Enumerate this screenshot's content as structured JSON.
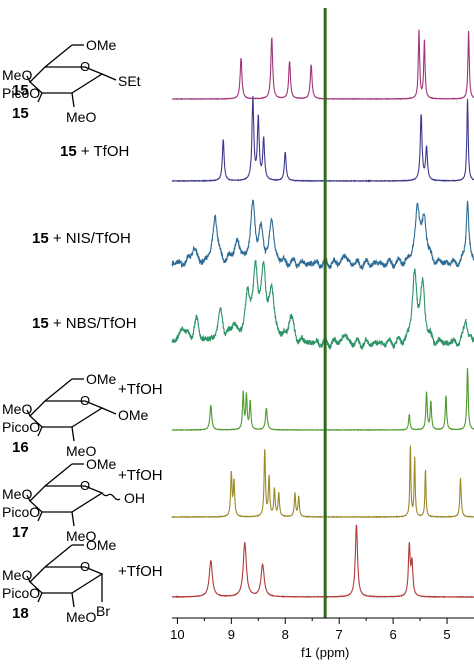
{
  "chart_data": {
    "type": "line",
    "title": "",
    "xlabel": "f1 (ppm)",
    "ylabel": "",
    "xlim": [
      10.1,
      4.5
    ],
    "x_reversed": true,
    "grid": false,
    "x_ticks": [
      10,
      9,
      8,
      7,
      6,
      5
    ],
    "reference_line_ppm": 7.26,
    "structure_labels": {
      "s15_ring": [
        "OMe",
        "MeO",
        "PicoO",
        "SEt",
        "MeO"
      ],
      "s16_ring": [
        "OMe",
        "MeO",
        "PicoO",
        "OMe",
        "MeO"
      ],
      "s17_ring": [
        "OMe",
        "MeO",
        "PicoO",
        "OH",
        "MeO"
      ],
      "s18_ring": [
        "OMe",
        "MeO",
        "PicoO",
        "Br",
        "MeO"
      ]
    },
    "series": [
      {
        "label_number": "15",
        "label_suffix": "",
        "color": "#a0357a",
        "style": "clean",
        "peaks": [
          [
            8.82,
            0.6,
            0.02
          ],
          [
            8.25,
            0.9,
            0.02
          ],
          [
            7.92,
            0.55,
            0.02
          ],
          [
            7.52,
            0.5,
            0.02
          ],
          [
            5.52,
            1.0,
            0.015
          ],
          [
            5.42,
            0.85,
            0.015
          ],
          [
            4.6,
            1.0,
            0.015
          ]
        ]
      },
      {
        "label_number": "15",
        "label_suffix": " + TfOH",
        "color": "#3c3a8e",
        "style": "clean",
        "peaks": [
          [
            9.15,
            0.5,
            0.02
          ],
          [
            8.6,
            1.0,
            0.02
          ],
          [
            8.5,
            0.75,
            0.02
          ],
          [
            8.4,
            0.5,
            0.02
          ],
          [
            8.0,
            0.35,
            0.02
          ],
          [
            5.48,
            0.8,
            0.02
          ],
          [
            5.38,
            0.4,
            0.02
          ],
          [
            4.62,
            1.0,
            0.015
          ]
        ]
      },
      {
        "label_number": "15",
        "label_suffix": " + NIS/TfOH",
        "color": "#2e6c96",
        "style": "broad",
        "peaks": [
          [
            9.7,
            0.2,
            0.05
          ],
          [
            9.3,
            0.6,
            0.05
          ],
          [
            8.9,
            0.25,
            0.07
          ],
          [
            8.6,
            0.7,
            0.05
          ],
          [
            8.45,
            0.35,
            0.05
          ],
          [
            8.25,
            0.5,
            0.05
          ],
          [
            6.9,
            0.1,
            0.05
          ],
          [
            5.55,
            0.7,
            0.05
          ],
          [
            5.42,
            0.55,
            0.05
          ],
          [
            4.62,
            0.8,
            0.03
          ]
        ]
      },
      {
        "label_number": "15",
        "label_suffix": " + NBS/TfOH",
        "color": "#2e9468",
        "style": "broad",
        "peaks": [
          [
            9.9,
            0.2,
            0.06
          ],
          [
            9.65,
            0.25,
            0.06
          ],
          [
            9.2,
            0.35,
            0.06
          ],
          [
            8.95,
            0.2,
            0.06
          ],
          [
            8.7,
            0.55,
            0.05
          ],
          [
            8.55,
            0.85,
            0.05
          ],
          [
            8.4,
            0.8,
            0.05
          ],
          [
            8.25,
            0.55,
            0.06
          ],
          [
            7.9,
            0.3,
            0.06
          ],
          [
            6.9,
            0.1,
            0.06
          ],
          [
            5.6,
            0.8,
            0.05
          ],
          [
            5.45,
            0.65,
            0.05
          ],
          [
            4.65,
            0.3,
            0.04
          ]
        ]
      },
      {
        "label_number": "16",
        "label_suffix": "+TfOH",
        "color": "#4e9a2a",
        "style": "clean",
        "peaks": [
          [
            9.38,
            0.4,
            0.02
          ],
          [
            8.78,
            0.6,
            0.015
          ],
          [
            8.72,
            0.55,
            0.015
          ],
          [
            8.65,
            0.45,
            0.015
          ],
          [
            8.35,
            0.35,
            0.02
          ],
          [
            5.7,
            0.25,
            0.015
          ],
          [
            5.38,
            0.6,
            0.015
          ],
          [
            5.3,
            0.45,
            0.015
          ],
          [
            5.02,
            0.55,
            0.015
          ],
          [
            4.62,
            1.0,
            0.015
          ]
        ]
      },
      {
        "label_number": "17",
        "label_suffix": "+TfOH",
        "color": "#9a8a2a",
        "style": "clean",
        "peaks": [
          [
            9.0,
            0.55,
            0.015
          ],
          [
            8.95,
            0.45,
            0.015
          ],
          [
            8.38,
            0.85,
            0.015
          ],
          [
            8.3,
            0.5,
            0.015
          ],
          [
            8.2,
            0.35,
            0.015
          ],
          [
            8.12,
            0.3,
            0.015
          ],
          [
            7.82,
            0.3,
            0.015
          ],
          [
            7.75,
            0.25,
            0.015
          ],
          [
            5.68,
            0.9,
            0.012
          ],
          [
            5.6,
            0.75,
            0.012
          ],
          [
            5.4,
            0.6,
            0.012
          ],
          [
            4.75,
            0.5,
            0.015
          ]
        ]
      },
      {
        "label_number": "18",
        "label_suffix": "+TfOH",
        "color": "#b03a3a",
        "style": "clean",
        "peaks": [
          [
            9.38,
            0.5,
            0.035
          ],
          [
            8.75,
            0.75,
            0.035
          ],
          [
            8.42,
            0.45,
            0.035
          ],
          [
            6.68,
            1.0,
            0.025
          ],
          [
            5.7,
            0.7,
            0.02
          ],
          [
            5.65,
            0.45,
            0.02
          ]
        ]
      }
    ]
  }
}
